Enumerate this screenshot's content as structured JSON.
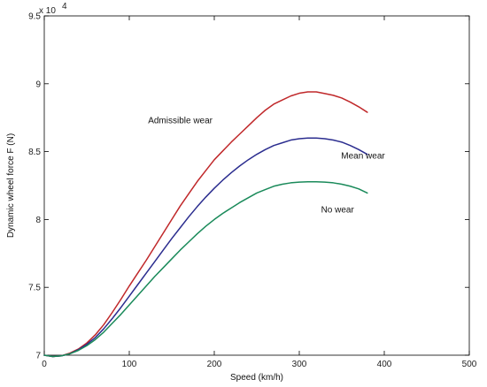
{
  "chart_data": {
    "type": "line",
    "xlabel": "Speed (km/h)",
    "ylabel": "Dynamic wheel force F (N)",
    "xlim": [
      0,
      500
    ],
    "ylim": [
      70000,
      95000
    ],
    "x_ticks": [
      0,
      100,
      200,
      300,
      400,
      500
    ],
    "y_ticks": [
      70000,
      75000,
      80000,
      85000,
      90000,
      95000
    ],
    "x_tick_labels": [
      "0",
      "100",
      "200",
      "300",
      "400",
      "500"
    ],
    "y_tick_labels": [
      "7",
      "7.5",
      "8",
      "8.5",
      "9",
      "9.5"
    ],
    "y_exponent_label": "x 10",
    "y_exponent_power": "4",
    "grid": false,
    "legend": "none",
    "series": [
      {
        "name": "Admissible wear",
        "color": "#c0282a",
        "x": [
          0,
          10,
          20,
          30,
          40,
          50,
          60,
          70,
          80,
          90,
          100,
          110,
          120,
          130,
          140,
          150,
          160,
          170,
          180,
          190,
          200,
          210,
          220,
          230,
          240,
          250,
          260,
          270,
          280,
          290,
          300,
          310,
          320,
          330,
          340,
          350,
          360,
          370,
          380
        ],
        "y": [
          70000,
          69900,
          69950,
          70150,
          70450,
          70900,
          71500,
          72250,
          73150,
          74100,
          75100,
          76050,
          77000,
          78000,
          79000,
          80000,
          81000,
          81900,
          82800,
          83600,
          84400,
          85050,
          85700,
          86300,
          86900,
          87500,
          88050,
          88500,
          88800,
          89100,
          89300,
          89400,
          89400,
          89280,
          89150,
          88950,
          88650,
          88300,
          87900
        ]
      },
      {
        "name": "Mean wear",
        "color": "#2b2d8f",
        "x": [
          0,
          10,
          20,
          30,
          40,
          50,
          60,
          70,
          80,
          90,
          100,
          110,
          120,
          130,
          140,
          150,
          160,
          170,
          180,
          190,
          200,
          210,
          220,
          230,
          240,
          250,
          260,
          270,
          280,
          290,
          300,
          310,
          320,
          330,
          340,
          350,
          360,
          370,
          380
        ],
        "y": [
          70000,
          69900,
          69950,
          70100,
          70400,
          70800,
          71300,
          71950,
          72700,
          73500,
          74350,
          75200,
          76050,
          76900,
          77750,
          78600,
          79400,
          80200,
          80950,
          81650,
          82300,
          82900,
          83450,
          83950,
          84400,
          84800,
          85150,
          85450,
          85650,
          85850,
          85950,
          86000,
          86000,
          85950,
          85850,
          85700,
          85450,
          85150,
          84800
        ]
      },
      {
        "name": "No wear",
        "color": "#1a8a5a",
        "x": [
          0,
          10,
          20,
          30,
          40,
          50,
          60,
          70,
          80,
          90,
          100,
          110,
          120,
          130,
          140,
          150,
          160,
          170,
          180,
          190,
          200,
          210,
          220,
          230,
          240,
          250,
          260,
          270,
          280,
          290,
          300,
          310,
          320,
          330,
          340,
          350,
          360,
          370,
          380
        ],
        "y": [
          70000,
          69900,
          69950,
          70100,
          70350,
          70700,
          71150,
          71700,
          72350,
          73000,
          73700,
          74400,
          75100,
          75800,
          76450,
          77100,
          77750,
          78350,
          78950,
          79500,
          80000,
          80450,
          80850,
          81250,
          81600,
          81950,
          82200,
          82450,
          82600,
          82700,
          82750,
          82780,
          82780,
          82750,
          82700,
          82600,
          82450,
          82250,
          81950
        ]
      }
    ],
    "annotations": [
      {
        "text": "Admissible wear",
        "x": 160,
        "y": 87100,
        "series": 0
      },
      {
        "text": "Mean wear",
        "x": 375,
        "y": 84500,
        "series": 1
      },
      {
        "text": "No wear",
        "x": 345,
        "y": 80500,
        "series": 2
      }
    ]
  }
}
